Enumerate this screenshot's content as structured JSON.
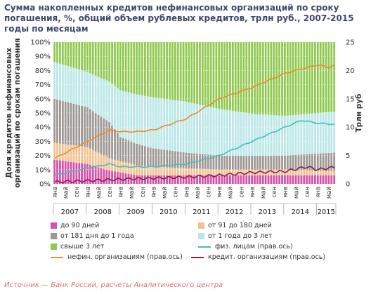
{
  "title": "Сумма накопленных кредитов нефинансовых организаций по сроку погашения, %, общий объем рублевых кредитов, трлн руб., 2007-2015 годы по месяцам",
  "source": "Источник — Банк России, расчеты Аналитического центра",
  "chart_data": {
    "type": "area",
    "ylabel_left": "Доля кредитов нефинансовых организаций по срокам погашения",
    "ylabel_right": "Трлн руб",
    "yleft_range": [
      0,
      100
    ],
    "yleft_ticks": [
      "0%",
      "10%",
      "20%",
      "30%",
      "40%",
      "50%",
      "60%",
      "70%",
      "80%",
      "90%",
      "100%"
    ],
    "yright_range": [
      0,
      25
    ],
    "yright_ticks": [
      "0",
      "5",
      "10",
      "15",
      "20",
      "25"
    ],
    "month_labels": [
      "янв",
      "май",
      "сен"
    ],
    "years": [
      "2007",
      "2008",
      "2009",
      "2010",
      "2011",
      "2012",
      "2013",
      "2014",
      "2015"
    ],
    "x_range": [
      "2007-01",
      "2015-07"
    ],
    "grid": true,
    "legend_position": "bottom",
    "stacked_series": [
      {
        "name": "до 90 дней",
        "color": "#d552a9",
        "key": [
          [
            0,
            17
          ],
          [
            12,
            14
          ],
          [
            24,
            8
          ],
          [
            30,
            6
          ],
          [
            48,
            6
          ],
          [
            60,
            6
          ],
          [
            84,
            6
          ],
          [
            102,
            6
          ]
        ]
      },
      {
        "name": "от 91 до 180 дней",
        "color": "#f3c08f",
        "key": [
          [
            0,
            12
          ],
          [
            12,
            12
          ],
          [
            24,
            8
          ],
          [
            36,
            6
          ],
          [
            48,
            5
          ],
          [
            60,
            4
          ],
          [
            84,
            4
          ],
          [
            102,
            3
          ]
        ]
      },
      {
        "name": "от 181 дня до 1 года",
        "color": "#9e9894",
        "key": [
          [
            0,
            31
          ],
          [
            12,
            28
          ],
          [
            20,
            27
          ],
          [
            24,
            17
          ],
          [
            36,
            13
          ],
          [
            48,
            11
          ],
          [
            60,
            10
          ],
          [
            72,
            10
          ],
          [
            84,
            10
          ],
          [
            102,
            13
          ]
        ]
      },
      {
        "name": "от 1 года до 3 лет",
        "color": "#b9e6e6",
        "key": [
          [
            0,
            26
          ],
          [
            12,
            25
          ],
          [
            24,
            33
          ],
          [
            36,
            36
          ],
          [
            48,
            36
          ],
          [
            60,
            33
          ],
          [
            72,
            30
          ],
          [
            84,
            28
          ],
          [
            102,
            29
          ]
        ]
      },
      {
        "name": "свыше 3 лет",
        "color": "#8fc950",
        "key": [
          [
            0,
            14
          ],
          [
            12,
            21
          ],
          [
            24,
            34
          ],
          [
            36,
            39
          ],
          [
            48,
            42
          ],
          [
            60,
            47
          ],
          [
            72,
            51
          ],
          [
            84,
            52
          ],
          [
            102,
            49
          ]
        ]
      }
    ],
    "line_series": [
      {
        "name": "физ. лицам (прав.ось)",
        "color": "#3fc0bd",
        "key": [
          [
            0,
            1.5
          ],
          [
            12,
            2.8
          ],
          [
            20,
            3.5
          ],
          [
            24,
            3.0
          ],
          [
            36,
            3.0
          ],
          [
            48,
            3.5
          ],
          [
            60,
            5.0
          ],
          [
            72,
            7.5
          ],
          [
            84,
            10.0
          ],
          [
            90,
            11.2
          ],
          [
            96,
            10.7
          ],
          [
            102,
            10.5
          ]
        ]
      },
      {
        "name": "нефин. организациям (прав.ось)",
        "color": "#ef8b2c",
        "key": [
          [
            0,
            4.5
          ],
          [
            12,
            7.5
          ],
          [
            20,
            9.5
          ],
          [
            24,
            9.2
          ],
          [
            30,
            9.2
          ],
          [
            36,
            9.5
          ],
          [
            48,
            11.5
          ],
          [
            60,
            15.0
          ],
          [
            72,
            17.0
          ],
          [
            84,
            19.5
          ],
          [
            96,
            21.0
          ],
          [
            100,
            20.5
          ],
          [
            102,
            21.0
          ]
        ]
      },
      {
        "name": "кредит. организациям (прав.ось)",
        "color": "#8a1f4e",
        "key": [
          [
            0,
            0.3
          ],
          [
            24,
            0.8
          ],
          [
            48,
            1.2
          ],
          [
            60,
            1.5
          ],
          [
            72,
            2.0
          ],
          [
            84,
            2.2
          ],
          [
            92,
            3.0
          ],
          [
            96,
            2.5
          ],
          [
            100,
            2.8
          ],
          [
            102,
            2.9
          ]
        ]
      }
    ]
  }
}
